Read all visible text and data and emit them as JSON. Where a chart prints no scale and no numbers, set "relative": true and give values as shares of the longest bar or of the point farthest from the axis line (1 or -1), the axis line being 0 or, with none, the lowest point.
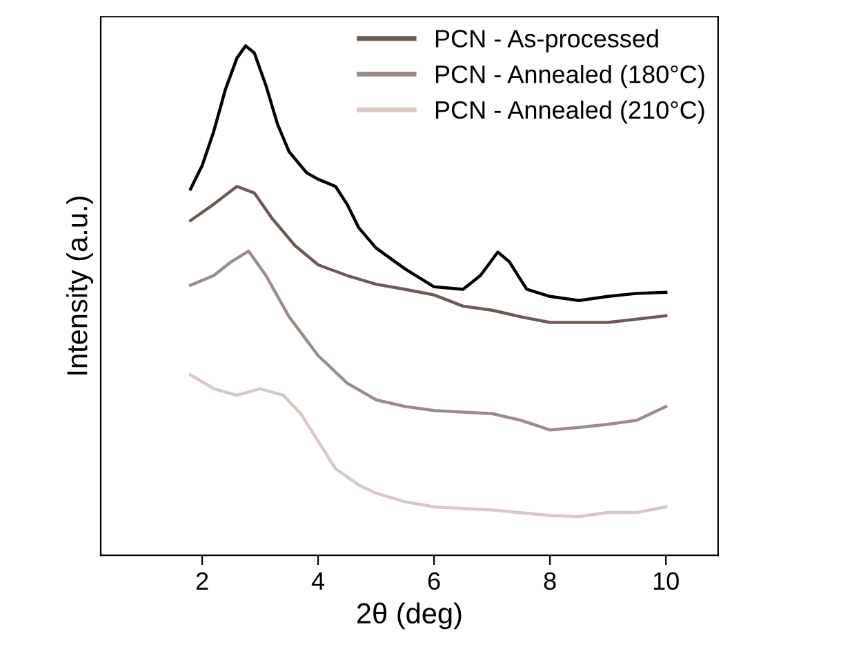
{
  "chart_data": {
    "type": "line",
    "relative": true,
    "xlabel": "2θ (deg)",
    "ylabel": "Intensity (a.u.)",
    "xlim": [
      0.25,
      10.9
    ],
    "xticks": [
      2,
      4,
      6,
      8,
      10
    ],
    "legend": "top right",
    "grid": false,
    "marker": "none",
    "line_style": "solid",
    "series": [
      {
        "color": "#000000",
        "x": [
          1.8,
          2.0,
          2.2,
          2.4,
          2.6,
          2.75,
          2.9,
          3.1,
          3.3,
          3.5,
          3.8,
          4.0,
          4.3,
          4.5,
          4.7,
          5.0,
          5.5,
          6.0,
          6.5,
          6.8,
          7.1,
          7.3,
          7.6,
          8.0,
          8.5,
          9.0,
          9.5,
          10.0
        ],
        "values": [
          0.719,
          0.765,
          0.832,
          0.914,
          0.976,
          1.0,
          0.986,
          0.922,
          0.846,
          0.792,
          0.751,
          0.738,
          0.724,
          0.689,
          0.643,
          0.603,
          0.562,
          0.527,
          0.522,
          0.549,
          0.595,
          0.576,
          0.522,
          0.508,
          0.5,
          0.508,
          0.514,
          0.516
        ]
      },
      {
        "name": "PCN - As-processed",
        "color": "#6e5a55",
        "x": [
          1.8,
          2.2,
          2.6,
          2.9,
          3.2,
          3.6,
          4.0,
          4.5,
          5.0,
          5.5,
          6.0,
          6.5,
          7.0,
          7.5,
          8.0,
          9.0,
          10.0
        ],
        "values": [
          0.657,
          0.689,
          0.724,
          0.711,
          0.662,
          0.608,
          0.57,
          0.549,
          0.532,
          0.522,
          0.511,
          0.489,
          0.481,
          0.468,
          0.457,
          0.457,
          0.47
        ]
      },
      {
        "name": "PCN - Annealed (180°C)",
        "color": "#9c8c88",
        "x": [
          1.8,
          2.2,
          2.5,
          2.8,
          3.1,
          3.5,
          4.0,
          4.5,
          5.0,
          5.5,
          6.0,
          7.0,
          7.5,
          8.0,
          8.5,
          9.0,
          9.5,
          10.0
        ],
        "values": [
          0.53,
          0.549,
          0.576,
          0.597,
          0.549,
          0.468,
          0.392,
          0.338,
          0.305,
          0.292,
          0.284,
          0.278,
          0.265,
          0.246,
          0.251,
          0.257,
          0.265,
          0.292
        ]
      },
      {
        "name": "PCN - Annealed (210°C)",
        "color": "#d8c8c4",
        "x": [
          1.8,
          2.2,
          2.6,
          3.0,
          3.4,
          3.7,
          4.0,
          4.3,
          4.7,
          5.0,
          5.5,
          6.0,
          7.0,
          8.0,
          8.5,
          9.0,
          9.5,
          10.0
        ],
        "values": [
          0.354,
          0.327,
          0.314,
          0.327,
          0.314,
          0.278,
          0.224,
          0.17,
          0.138,
          0.122,
          0.105,
          0.095,
          0.089,
          0.078,
          0.076,
          0.084,
          0.084,
          0.095
        ]
      }
    ]
  }
}
